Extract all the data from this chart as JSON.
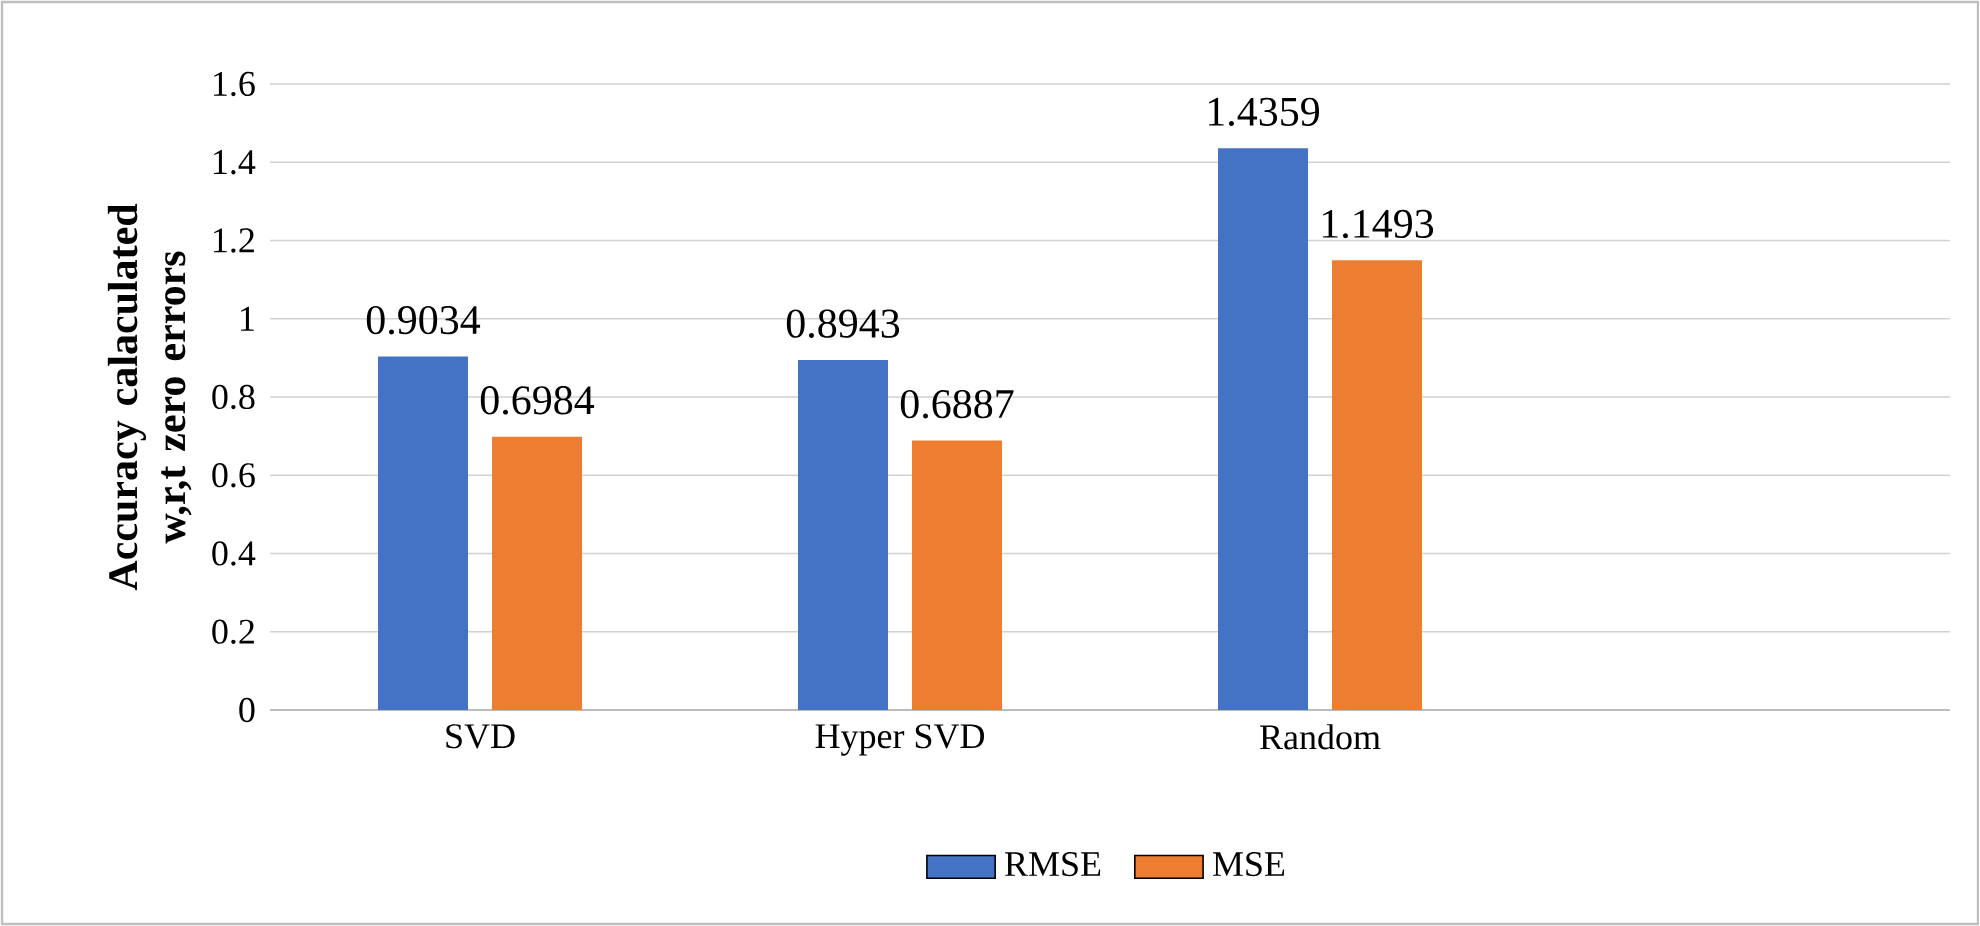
{
  "chart_data": {
    "type": "bar",
    "categories": [
      "SVD",
      "Hyper SVD",
      "Random",
      null
    ],
    "series": [
      {
        "name": "RMSE",
        "color": "#4472c4",
        "values": [
          0.9034,
          0.8943,
          1.4359,
          null
        ],
        "value_labels": [
          "0.9034",
          "0.8943",
          "1.4359",
          null
        ]
      },
      {
        "name": "MSE",
        "color": "#ed7d31",
        "values": [
          0.6984,
          0.6887,
          1.1493,
          null
        ],
        "value_labels": [
          "0.6984",
          "0.6887",
          "1.1493",
          null
        ]
      }
    ],
    "ylabel": "Accuracy calaculated w,r,t zero errors",
    "ylim": [
      0,
      1.6
    ],
    "yticks": [
      0,
      0.2,
      0.4,
      0.6,
      0.8,
      1,
      1.2,
      1.4,
      1.6
    ],
    "grid": "y",
    "legend": "bottom"
  }
}
